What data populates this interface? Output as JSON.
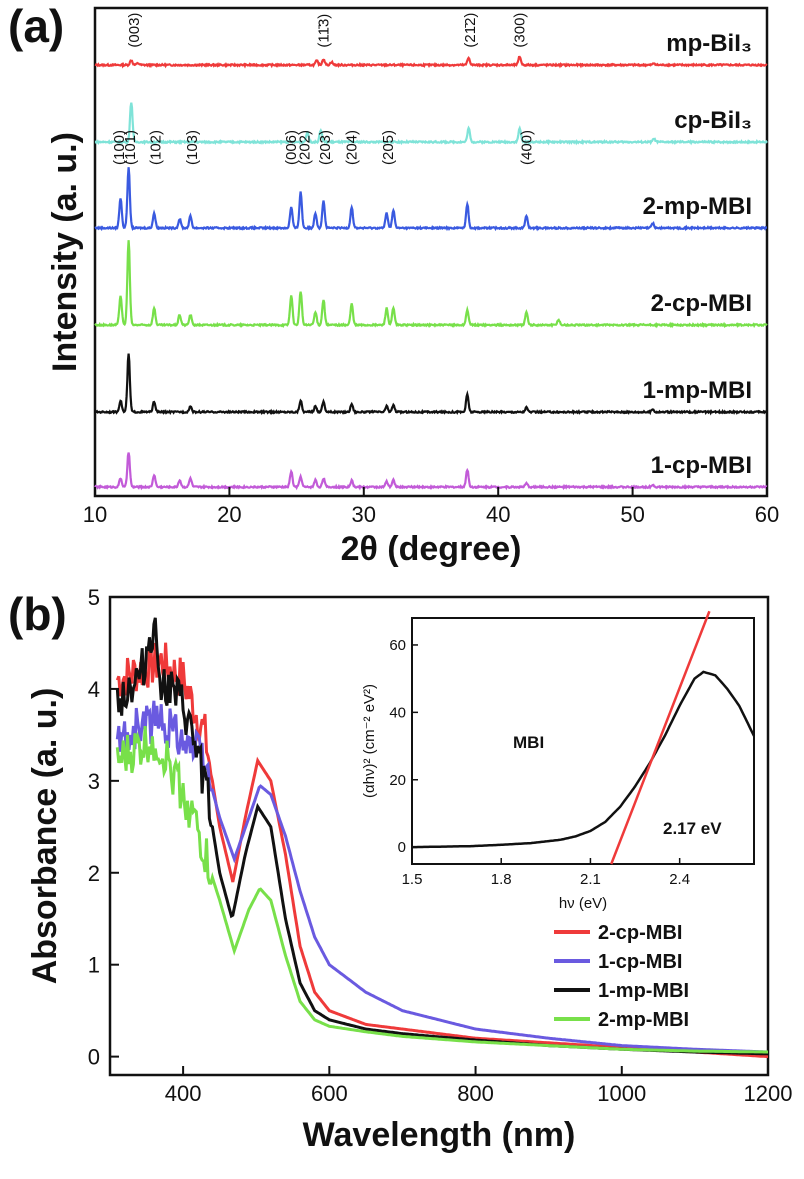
{
  "chart_data": [
    {
      "type": "line",
      "panel": "(a)",
      "xlabel": "2θ (degree)",
      "ylabel": "Intensity (a. u.)",
      "xlim": [
        10,
        60
      ],
      "xticks": [
        "10",
        "20",
        "30",
        "40",
        "50",
        "60"
      ],
      "series": [
        {
          "name": "mp-BiI₃",
          "color": "#ef3a3a",
          "peaks": [
            [
              12.7,
              0.4
            ],
            [
              13.2,
              0.15
            ],
            [
              26.5,
              0.35
            ],
            [
              27.0,
              0.5
            ],
            [
              27.6,
              0.25
            ],
            [
              37.8,
              0.6
            ],
            [
              41.6,
              0.7
            ],
            [
              51.6,
              0.15
            ]
          ],
          "peak_labels": [
            {
              "x": 12.9,
              "text": "(003)"
            },
            {
              "x": 27.0,
              "text": "(11̄3)"
            },
            {
              "x": 37.9,
              "text": "(21̄2)"
            },
            {
              "x": 41.6,
              "text": "(300)"
            }
          ]
        },
        {
          "name": "cp-BiI₃",
          "color": "#7fe3d8",
          "peaks": [
            [
              12.7,
              1.0
            ],
            [
              25.8,
              0.25
            ],
            [
              26.8,
              0.3
            ],
            [
              37.8,
              0.35
            ],
            [
              41.6,
              0.35
            ],
            [
              51.6,
              0.08
            ]
          ],
          "peak_labels": []
        },
        {
          "name": "2-mp-MBI",
          "color": "#3a5ae0",
          "peaks": [
            [
              11.9,
              0.5
            ],
            [
              12.5,
              1.0
            ],
            [
              14.4,
              0.25
            ],
            [
              16.3,
              0.15
            ],
            [
              17.1,
              0.2
            ],
            [
              24.6,
              0.35
            ],
            [
              25.3,
              0.6
            ],
            [
              26.4,
              0.25
            ],
            [
              27.0,
              0.45
            ],
            [
              29.1,
              0.35
            ],
            [
              31.7,
              0.25
            ],
            [
              32.2,
              0.3
            ],
            [
              37.7,
              0.4
            ],
            [
              42.1,
              0.2
            ],
            [
              51.5,
              0.08
            ]
          ],
          "peak_labels": [
            {
              "x": 11.8,
              "text": "(100)"
            },
            {
              "x": 12.6,
              "text": "(101)"
            },
            {
              "x": 14.5,
              "text": "(102)"
            },
            {
              "x": 17.2,
              "text": "(103)"
            },
            {
              "x": 24.6,
              "text": "(006)"
            },
            {
              "x": 25.6,
              "text": "(202)"
            },
            {
              "x": 27.1,
              "text": "(203)"
            },
            {
              "x": 29.1,
              "text": "(204)"
            },
            {
              "x": 31.8,
              "text": "(205)"
            },
            {
              "x": 42.1,
              "text": "(400)"
            }
          ]
        },
        {
          "name": "2-cp-MBI",
          "color": "#78e04a",
          "peaks": [
            [
              11.9,
              0.35
            ],
            [
              12.5,
              1.0
            ],
            [
              14.4,
              0.2
            ],
            [
              16.3,
              0.12
            ],
            [
              17.1,
              0.12
            ],
            [
              24.6,
              0.35
            ],
            [
              25.3,
              0.4
            ],
            [
              26.4,
              0.15
            ],
            [
              27.0,
              0.3
            ],
            [
              29.1,
              0.25
            ],
            [
              31.7,
              0.2
            ],
            [
              32.2,
              0.2
            ],
            [
              37.7,
              0.18
            ],
            [
              42.1,
              0.15
            ],
            [
              44.5,
              0.06
            ]
          ],
          "peak_labels": []
        },
        {
          "name": "1-mp-MBI",
          "color": "#111111",
          "peaks": [
            [
              11.9,
              0.2
            ],
            [
              12.5,
              1.0
            ],
            [
              14.4,
              0.18
            ],
            [
              17.1,
              0.1
            ],
            [
              25.3,
              0.2
            ],
            [
              26.4,
              0.1
            ],
            [
              27.0,
              0.18
            ],
            [
              29.1,
              0.14
            ],
            [
              31.7,
              0.1
            ],
            [
              32.2,
              0.12
            ],
            [
              37.7,
              0.3
            ],
            [
              42.1,
              0.08
            ],
            [
              51.5,
              0.05
            ]
          ],
          "peak_labels": []
        },
        {
          "name": "1-cp-MBI",
          "color": "#c25bd8",
          "peaks": [
            [
              11.9,
              0.25
            ],
            [
              12.5,
              1.0
            ],
            [
              14.4,
              0.35
            ],
            [
              16.3,
              0.2
            ],
            [
              17.1,
              0.25
            ],
            [
              24.6,
              0.45
            ],
            [
              25.3,
              0.3
            ],
            [
              26.4,
              0.2
            ],
            [
              27.0,
              0.25
            ],
            [
              29.1,
              0.18
            ],
            [
              31.7,
              0.15
            ],
            [
              32.2,
              0.2
            ],
            [
              37.7,
              0.5
            ],
            [
              42.1,
              0.1
            ],
            [
              51.5,
              0.06
            ]
          ],
          "peak_labels": []
        }
      ]
    },
    {
      "type": "line",
      "panel": "(b)",
      "xlabel": "Wavelength (nm)",
      "ylabel": "Absorbance (a. u.)",
      "xlim": [
        300,
        1200
      ],
      "ylim": [
        -0.2,
        5
      ],
      "xticks": [
        "400",
        "600",
        "800",
        "1000",
        "1200"
      ],
      "yticks": [
        "0",
        "1",
        "2",
        "3",
        "4",
        "5"
      ],
      "legend": "bottom-right",
      "series": [
        {
          "name": "2-cp-MBI",
          "color": "#ef3a3a",
          "x": [
            310,
            340,
            370,
            400,
            430,
            450,
            468,
            485,
            502,
            520,
            540,
            560,
            580,
            600,
            650,
            700,
            800,
            900,
            1000,
            1100,
            1200
          ],
          "y": [
            4.1,
            4.2,
            4.3,
            4.1,
            3.5,
            2.5,
            1.9,
            2.6,
            3.22,
            3.0,
            2.2,
            1.2,
            0.7,
            0.5,
            0.35,
            0.3,
            0.2,
            0.15,
            0.1,
            0.05,
            0.0
          ]
        },
        {
          "name": "1-cp-MBI",
          "color": "#6a5ae0",
          "x": [
            310,
            340,
            370,
            400,
            430,
            450,
            470,
            490,
            505,
            520,
            540,
            560,
            580,
            600,
            650,
            700,
            800,
            900,
            1000,
            1100,
            1200
          ],
          "y": [
            3.4,
            3.6,
            3.65,
            3.5,
            3.2,
            2.6,
            2.15,
            2.6,
            2.95,
            2.85,
            2.4,
            1.8,
            1.3,
            1.0,
            0.7,
            0.5,
            0.3,
            0.2,
            0.12,
            0.08,
            0.05
          ]
        },
        {
          "name": "1-mp-MBI",
          "color": "#111111",
          "x": [
            310,
            340,
            360,
            370,
            400,
            430,
            450,
            467,
            485,
            502,
            520,
            540,
            560,
            580,
            600,
            650,
            700,
            800,
            900,
            1000,
            1100,
            1200
          ],
          "y": [
            3.9,
            4.1,
            4.7,
            4.1,
            3.8,
            3.0,
            2.0,
            1.5,
            2.2,
            2.72,
            2.5,
            1.5,
            0.8,
            0.5,
            0.4,
            0.3,
            0.25,
            0.18,
            0.12,
            0.08,
            0.05,
            0.03
          ]
        },
        {
          "name": "2-mp-MBI",
          "color": "#78e04a",
          "x": [
            310,
            340,
            360,
            380,
            410,
            430,
            450,
            470,
            490,
            505,
            520,
            540,
            560,
            580,
            600,
            650,
            700,
            800,
            900,
            1000,
            1100,
            1200
          ],
          "y": [
            3.2,
            3.35,
            3.45,
            3.2,
            2.7,
            2.2,
            1.7,
            1.15,
            1.6,
            1.83,
            1.7,
            1.1,
            0.6,
            0.4,
            0.33,
            0.27,
            0.22,
            0.16,
            0.12,
            0.08,
            0.06,
            0.05
          ]
        }
      ],
      "inset": {
        "xlabel": "hν (eV)",
        "ylabel": "(αhν)² (cm⁻² eV²)",
        "xlim": [
          1.5,
          2.65
        ],
        "ylim": [
          -5,
          68
        ],
        "xticks": [
          "1.5",
          "1.8",
          "2.1",
          "2.4"
        ],
        "yticks": [
          "0",
          "20",
          "40",
          "60"
        ],
        "sample_label": "MBI",
        "annotation": "2.17 eV",
        "data": {
          "x": [
            1.5,
            1.7,
            1.8,
            1.9,
            2.0,
            2.05,
            2.1,
            2.15,
            2.2,
            2.25,
            2.3,
            2.35,
            2.4,
            2.45,
            2.48,
            2.52,
            2.56,
            2.6,
            2.65
          ],
          "y": [
            0,
            0.3,
            0.7,
            1.2,
            2.2,
            3.2,
            4.8,
            7.5,
            12,
            18,
            25,
            33,
            42,
            50,
            52,
            51,
            47,
            42,
            33
          ]
        },
        "fit": {
          "x": [
            2.17,
            2.5
          ],
          "y": [
            -5,
            70
          ]
        }
      }
    }
  ]
}
